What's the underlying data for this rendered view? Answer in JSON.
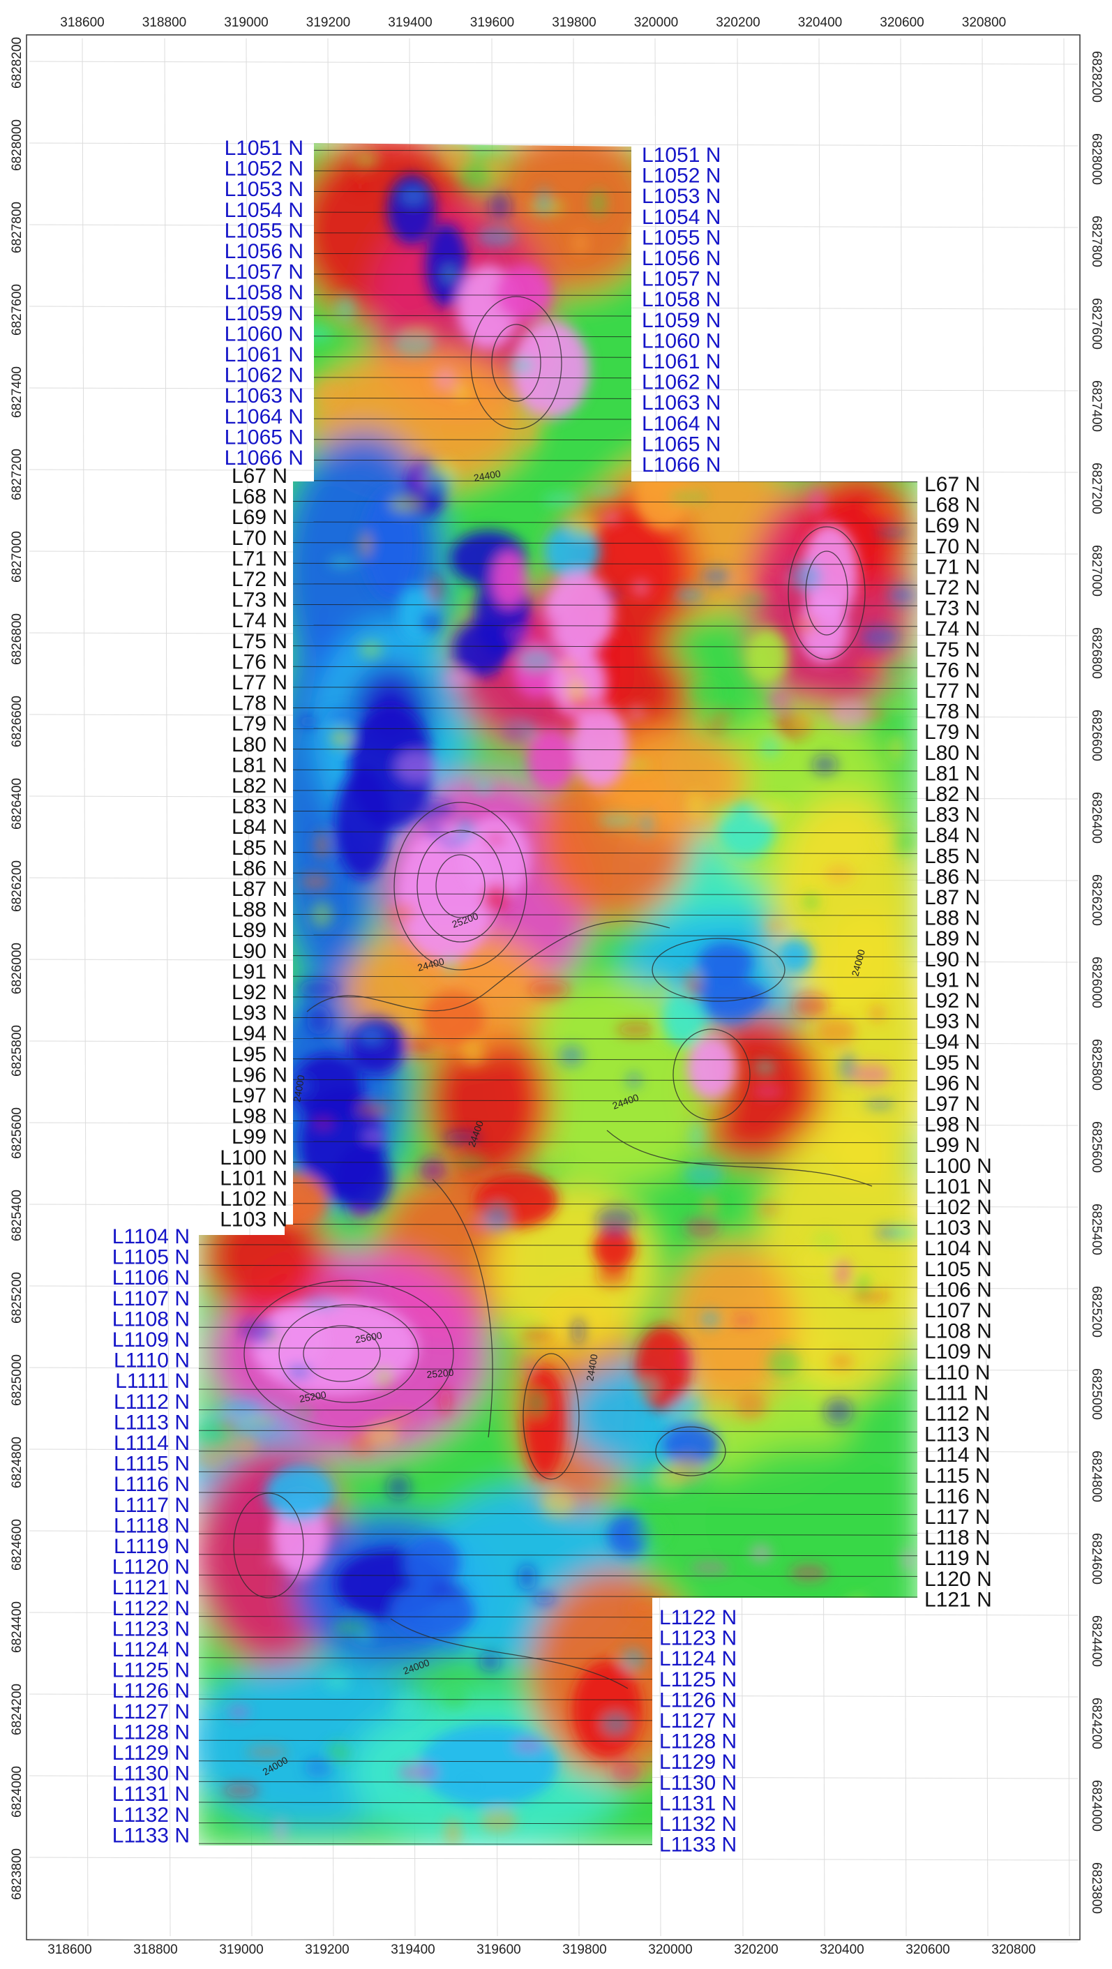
{
  "axes": {
    "top_x_labels": [
      "318600",
      "318800",
      "319000",
      "319200",
      "319400",
      "319600",
      "319800",
      "320000",
      "320200",
      "320400",
      "320600",
      "320800"
    ],
    "bottom_x_labels": [
      "318600",
      "318800",
      "319000",
      "319200",
      "319400",
      "319600",
      "319800",
      "320000",
      "320200",
      "320400",
      "320600",
      "320800"
    ],
    "left_y_labels": [
      "6828200",
      "6828000",
      "6827800",
      "6827600",
      "6827400",
      "6827200",
      "6827000",
      "6826800",
      "6826600",
      "6826400",
      "6826200",
      "6826000",
      "6825800",
      "6825600",
      "6825400",
      "6825200",
      "6825000",
      "6824800",
      "6824600",
      "6824400",
      "6824200",
      "6824000",
      "6823800"
    ],
    "right_y_labels": [
      "6828200",
      "6828000",
      "6827800",
      "6827600",
      "6827400",
      "6827200",
      "6827000",
      "6826800",
      "6826600",
      "6826400",
      "6826200",
      "6826000",
      "6825800",
      "6825600",
      "6825400",
      "6825200",
      "6825000",
      "6824800",
      "6824600",
      "6824400",
      "6824200",
      "6824000",
      "6823800"
    ]
  },
  "line_labels": {
    "north_block_left": [
      "L1051 N",
      "L1052 N",
      "L1053 N",
      "L1054 N",
      "L1055 N",
      "L1056 N",
      "L1057 N",
      "L1058 N",
      "L1059 N",
      "L1060 N",
      "L1061 N",
      "L1062 N",
      "L1063 N",
      "L1064 N",
      "L1065 N",
      "L1066 N"
    ],
    "north_block_right": [
      "L1051 N",
      "L1052 N",
      "L1053 N",
      "L1054 N",
      "L1055 N",
      "L1056 N",
      "L1057 N",
      "L1058 N",
      "L1059 N",
      "L1060 N",
      "L1061 N",
      "L1062 N",
      "L1063 N",
      "L1064 N",
      "L1065 N",
      "L1066 N"
    ],
    "middle_block_left": [
      "L67 N",
      "L68 N",
      "L69 N",
      "L70 N",
      "L71 N",
      "L72 N",
      "L73 N",
      "L74 N",
      "L75 N",
      "L76 N",
      "L77 N",
      "L78 N",
      "L79 N",
      "L80 N",
      "L81 N",
      "L82 N",
      "L83 N",
      "L84 N",
      "L85 N",
      "L86 N",
      "L87 N",
      "L88 N",
      "L89 N",
      "L90 N",
      "L91 N",
      "L92 N",
      "L93 N",
      "L94 N",
      "L95 N",
      "L96 N",
      "L97 N",
      "L98 N",
      "L99 N",
      "L100 N",
      "L101 N",
      "L102 N",
      "L103 N"
    ],
    "middle_block_right": [
      "L67 N",
      "L68 N",
      "L69 N",
      "L70 N",
      "L71 N",
      "L72 N",
      "L73 N",
      "L74 N",
      "L75 N",
      "L76 N",
      "L77 N",
      "L78 N",
      "L79 N",
      "L80 N",
      "L81 N",
      "L82 N",
      "L83 N",
      "L84 N",
      "L85 N",
      "L86 N",
      "L87 N",
      "L88 N",
      "L89 N",
      "L90 N",
      "L91 N",
      "L92 N",
      "L93 N",
      "L94 N",
      "L95 N",
      "L96 N",
      "L97 N",
      "L98 N",
      "L99 N",
      "L100 N",
      "L101 N",
      "L102 N",
      "L103 N",
      "L104 N",
      "L105 N",
      "L106 N",
      "L107 N",
      "L108 N",
      "L109 N",
      "L110 N",
      "L111 N",
      "L112 N",
      "L113 N",
      "L114 N",
      "L115 N",
      "L116 N",
      "L117 N",
      "L118 N",
      "L119 N",
      "L120 N",
      "L121 N"
    ],
    "south_block_left": [
      "L1104 N",
      "L1105 N",
      "L1106 N",
      "L1107 N",
      "L1108 N",
      "L1109 N",
      "L1110 N",
      "L1111 N",
      "L1112 N",
      "L1113 N",
      "L1114 N",
      "L1115 N",
      "L1116 N",
      "L1117 N",
      "L1118 N",
      "L1119 N",
      "L1120 N",
      "L1121 N",
      "L1122 N",
      "L1123 N",
      "L1124 N",
      "L1125 N",
      "L1126 N",
      "L1127 N",
      "L1128 N",
      "L1129 N",
      "L1130 N",
      "L1131 N",
      "L1132 N",
      "L1133 N"
    ],
    "south_block_right": [
      "L1122 N",
      "L1123 N",
      "L1124 N",
      "L1125 N",
      "L1126 N",
      "L1127 N",
      "L1128 N",
      "L1129 N",
      "L1130 N",
      "L1131 N",
      "L1132 N",
      "L1133 N"
    ]
  },
  "contour_labels": [
    "24400",
    "25200",
    "24400",
    "24000",
    "25200",
    "24400",
    "24000",
    "24400",
    "25600",
    "25200",
    "24000",
    "24400",
    "24000"
  ],
  "colors": {
    "blue_line_label": "#1414c8",
    "black_line_label": "#111111",
    "color_scale": [
      "#1a10c8",
      "#1c63e8",
      "#22b8f0",
      "#3ee8c8",
      "#3ad848",
      "#a8e83a",
      "#f0e02c",
      "#f8a030",
      "#f06828",
      "#e81818",
      "#e0206c",
      "#e848c8",
      "#f090f0"
    ]
  }
}
